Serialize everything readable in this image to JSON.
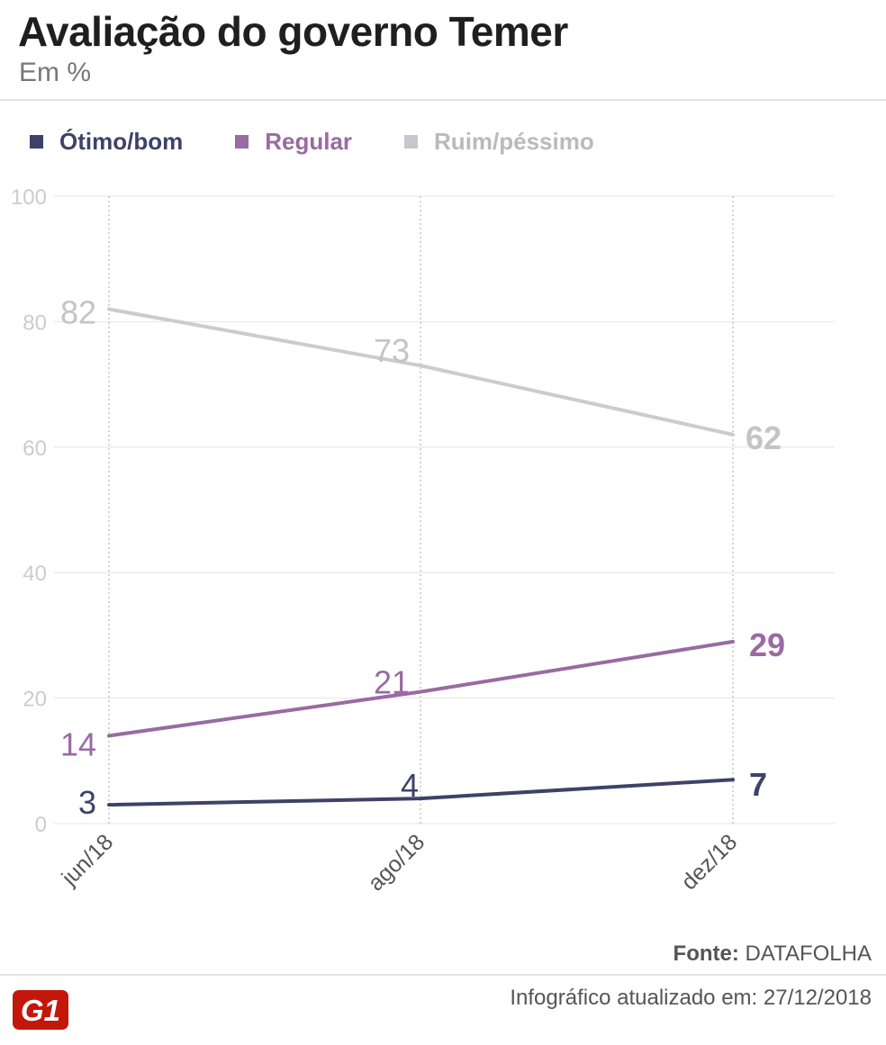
{
  "header": {
    "title": "Avaliação do governo Temer",
    "subtitle": "Em %"
  },
  "legend": [
    {
      "label": "Ótimo/bom",
      "color": "#3e4268"
    },
    {
      "label": "Regular",
      "color": "#9a6aa3"
    },
    {
      "label": "Ruim/péssimo",
      "color": "#c6c6cc"
    }
  ],
  "chart_data": {
    "type": "line",
    "title": "Avaliação do governo Temer",
    "subtitle": "Em %",
    "categories": [
      "jun/18",
      "ago/18",
      "dez/18"
    ],
    "series": [
      {
        "name": "Ótimo/bom",
        "values": [
          3,
          4,
          7
        ],
        "color": "#3e4268",
        "label_color": "#3e4268"
      },
      {
        "name": "Regular",
        "values": [
          14,
          21,
          29
        ],
        "color": "#9a6aa3",
        "label_color": "#9a6aa3"
      },
      {
        "name": "Ruim/péssimo",
        "values": [
          82,
          73,
          62
        ],
        "color": "#cccccc",
        "label_color": "#c4c4c4"
      }
    ],
    "yticks": [
      0,
      20,
      40,
      60,
      80,
      100
    ],
    "ylim": [
      0,
      100
    ],
    "xlabel": "",
    "ylabel": "",
    "grid": true,
    "legend_position": "top"
  },
  "footer": {
    "source_label": "Fonte:",
    "source_name": "DATAFOLHA",
    "updated_text": "Infográfico atualizado em: 27/12/2018",
    "logo_text": "G1",
    "logo_color": "#c4170c"
  }
}
